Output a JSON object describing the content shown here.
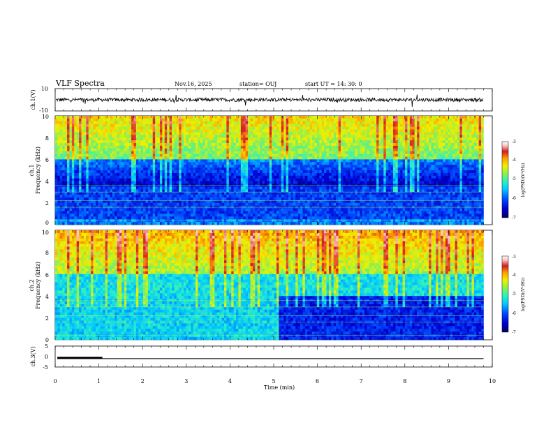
{
  "header": {
    "title": "VLF Spectra",
    "date": "Nov.16, 2025",
    "station": "station= OUJ",
    "start": "start  UT =   14: 30: 0"
  },
  "chart_data": [
    {
      "type": "line",
      "name": "ch1-voltage",
      "ylabel": "ch.1(V)",
      "ylim": [
        -10,
        10
      ],
      "yticks": [
        "10",
        "-10"
      ],
      "xlim": [
        0,
        10
      ],
      "data_end_min": 9.8,
      "baseline": 0
    },
    {
      "type": "heatmap",
      "name": "ch1-spectrogram",
      "ylabel": [
        "ch.1",
        "Frequency  (kHz)"
      ],
      "ylim": [
        0,
        10
      ],
      "yticks": [
        "0",
        "2",
        "4",
        "6",
        "8",
        "10"
      ],
      "xlim": [
        0,
        10
      ],
      "data_end_min": 9.8,
      "colorbar": {
        "label": "log(PSD)(V²/Hz)",
        "range": [
          -7,
          -3
        ],
        "ticks": [
          "-3",
          "-4",
          "-5",
          "-6",
          "-7"
        ]
      }
    },
    {
      "type": "heatmap",
      "name": "ch2-spectrogram",
      "ylabel": [
        "ch.2",
        "Frequency  (kHz)"
      ],
      "ylim": [
        0,
        10
      ],
      "yticks": [
        "0",
        "2",
        "4",
        "6",
        "8",
        "10"
      ],
      "xlim": [
        0,
        10
      ],
      "data_end_min": 9.8,
      "colorbar": {
        "label": "log(PSD)(V²/Hz)",
        "range": [
          -7,
          -3
        ],
        "ticks": [
          "-3",
          "-4",
          "-5",
          "-6",
          "-7"
        ]
      }
    },
    {
      "type": "line",
      "name": "ch3-voltage",
      "ylabel": "ch.3(V)",
      "ylim": [
        -5,
        5
      ],
      "yticks": [
        "5",
        "0",
        "-5"
      ],
      "xlim": [
        0,
        10
      ],
      "data_end_min": 9.8,
      "level": -1,
      "thick_segment": [
        0.05,
        1.08
      ]
    }
  ],
  "xaxis": {
    "label": "Time  (min)",
    "ticks": [
      "0",
      "1",
      "2",
      "3",
      "4",
      "5",
      "6",
      "7",
      "8",
      "9",
      "10"
    ]
  },
  "colors": {
    "colormap": [
      "#000064",
      "#0000d2",
      "#0050ff",
      "#00c8ff",
      "#30f0c0",
      "#8cf050",
      "#f0f000",
      "#ffa000",
      "#d21e1e",
      "#ffc8c8",
      "#ffffff"
    ]
  }
}
